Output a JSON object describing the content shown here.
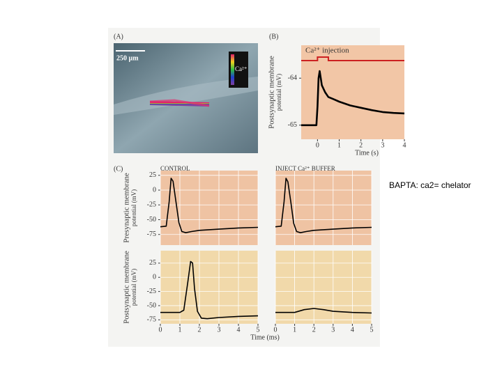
{
  "figure": {
    "panel_a": {
      "label": "(A)",
      "scale_bar": "250 µm",
      "color_key": "Ca²⁺"
    }
  },
  "note": "BAPTA: ca2= chelator",
  "chart_data": [
    {
      "type": "line",
      "panel": "(B)",
      "ylabel": [
        "Postsynaptic membrane",
        "potential (mV)"
      ],
      "xlabel": "Time (s)",
      "annotation": "Ca²⁺ injection",
      "injection": [
        0,
        0.5
      ],
      "injection_color": "#cc2020",
      "background": "#f2c6a6",
      "color": "#000",
      "xlim": [
        -0.75,
        4
      ],
      "xticks": [
        0,
        1,
        2,
        3,
        4
      ],
      "ylim": [
        -65.3,
        -63.3
      ],
      "yticks": [
        -64,
        -65
      ],
      "grid": false,
      "x": [
        -0.75,
        -0.05,
        0,
        0.05,
        0.1,
        0.2,
        0.35,
        0.5,
        0.75,
        1,
        1.5,
        2,
        2.5,
        3,
        3.5,
        4
      ],
      "values": [
        -65.0,
        -65.0,
        -64.6,
        -64.0,
        -63.85,
        -64.15,
        -64.3,
        -64.4,
        -64.45,
        -64.5,
        -64.58,
        -64.63,
        -64.68,
        -64.72,
        -64.74,
        -64.75
      ]
    },
    {
      "type": "line",
      "panel": "(C)",
      "title": "CONTROL",
      "ylabel": [
        "Presynaptic membrane",
        "potential (mV)"
      ],
      "background": "#efc3a3",
      "color": "#000",
      "grid": true,
      "show_xtick_labels": false,
      "xlim": [
        0,
        5
      ],
      "xticks": [
        0,
        1,
        2,
        3,
        4,
        5
      ],
      "ylim": [
        -93,
        33
      ],
      "yticks": [
        25,
        0,
        -25,
        -50,
        -75
      ],
      "x": [
        0,
        0.3,
        0.45,
        0.55,
        0.65,
        0.8,
        0.95,
        1.1,
        1.3,
        1.6,
        2,
        3,
        4,
        5
      ],
      "values": [
        -62,
        -61,
        -20,
        20,
        15,
        -20,
        -55,
        -70,
        -72,
        -70,
        -68,
        -66,
        -64,
        -63
      ]
    },
    {
      "type": "line",
      "title": "INJECT Ca²⁺ BUFFER",
      "background": "#efc3a3",
      "color": "#000",
      "grid": true,
      "show_xtick_labels": false,
      "xlim": [
        0,
        5
      ],
      "xticks": [
        0,
        1,
        2,
        3,
        4,
        5
      ],
      "ylim": [
        -93,
        33
      ],
      "x": [
        0,
        0.3,
        0.45,
        0.55,
        0.65,
        0.8,
        0.95,
        1.1,
        1.3,
        1.6,
        2,
        3,
        4,
        5
      ],
      "values": [
        -62,
        -61,
        -20,
        20,
        14,
        -20,
        -56,
        -70,
        -72,
        -70,
        -68,
        -66,
        -64,
        -63
      ]
    },
    {
      "type": "line",
      "ylabel": [
        "Postsynaptic membrane",
        "potential (mV)"
      ],
      "xlabel": "Time (ms)",
      "background": "#f1d9aa",
      "color": "#000",
      "grid": true,
      "show_xtick_labels": true,
      "xlim": [
        0,
        5
      ],
      "xticks": [
        0,
        1,
        2,
        3,
        4,
        5
      ],
      "ylim": [
        -82,
        47
      ],
      "yticks": [
        25,
        0,
        -25,
        -50,
        -75
      ],
      "x": [
        0,
        1,
        1.2,
        1.4,
        1.55,
        1.65,
        1.75,
        1.9,
        2.1,
        2.4,
        3,
        4,
        5
      ],
      "values": [
        -62,
        -62,
        -58,
        -10,
        28,
        25,
        -20,
        -60,
        -72,
        -73,
        -71,
        -69,
        -68
      ]
    },
    {
      "type": "line",
      "background": "#f1d9aa",
      "color": "#000",
      "grid": true,
      "show_xtick_labels": true,
      "xlim": [
        0,
        5
      ],
      "xticks": [
        0,
        1,
        2,
        3,
        4,
        5
      ],
      "ylim": [
        -82,
        47
      ],
      "x": [
        0,
        1,
        1.5,
        2,
        2.5,
        3,
        4,
        5
      ],
      "values": [
        -62,
        -62,
        -57,
        -55,
        -57,
        -60,
        -62,
        -63
      ]
    }
  ]
}
